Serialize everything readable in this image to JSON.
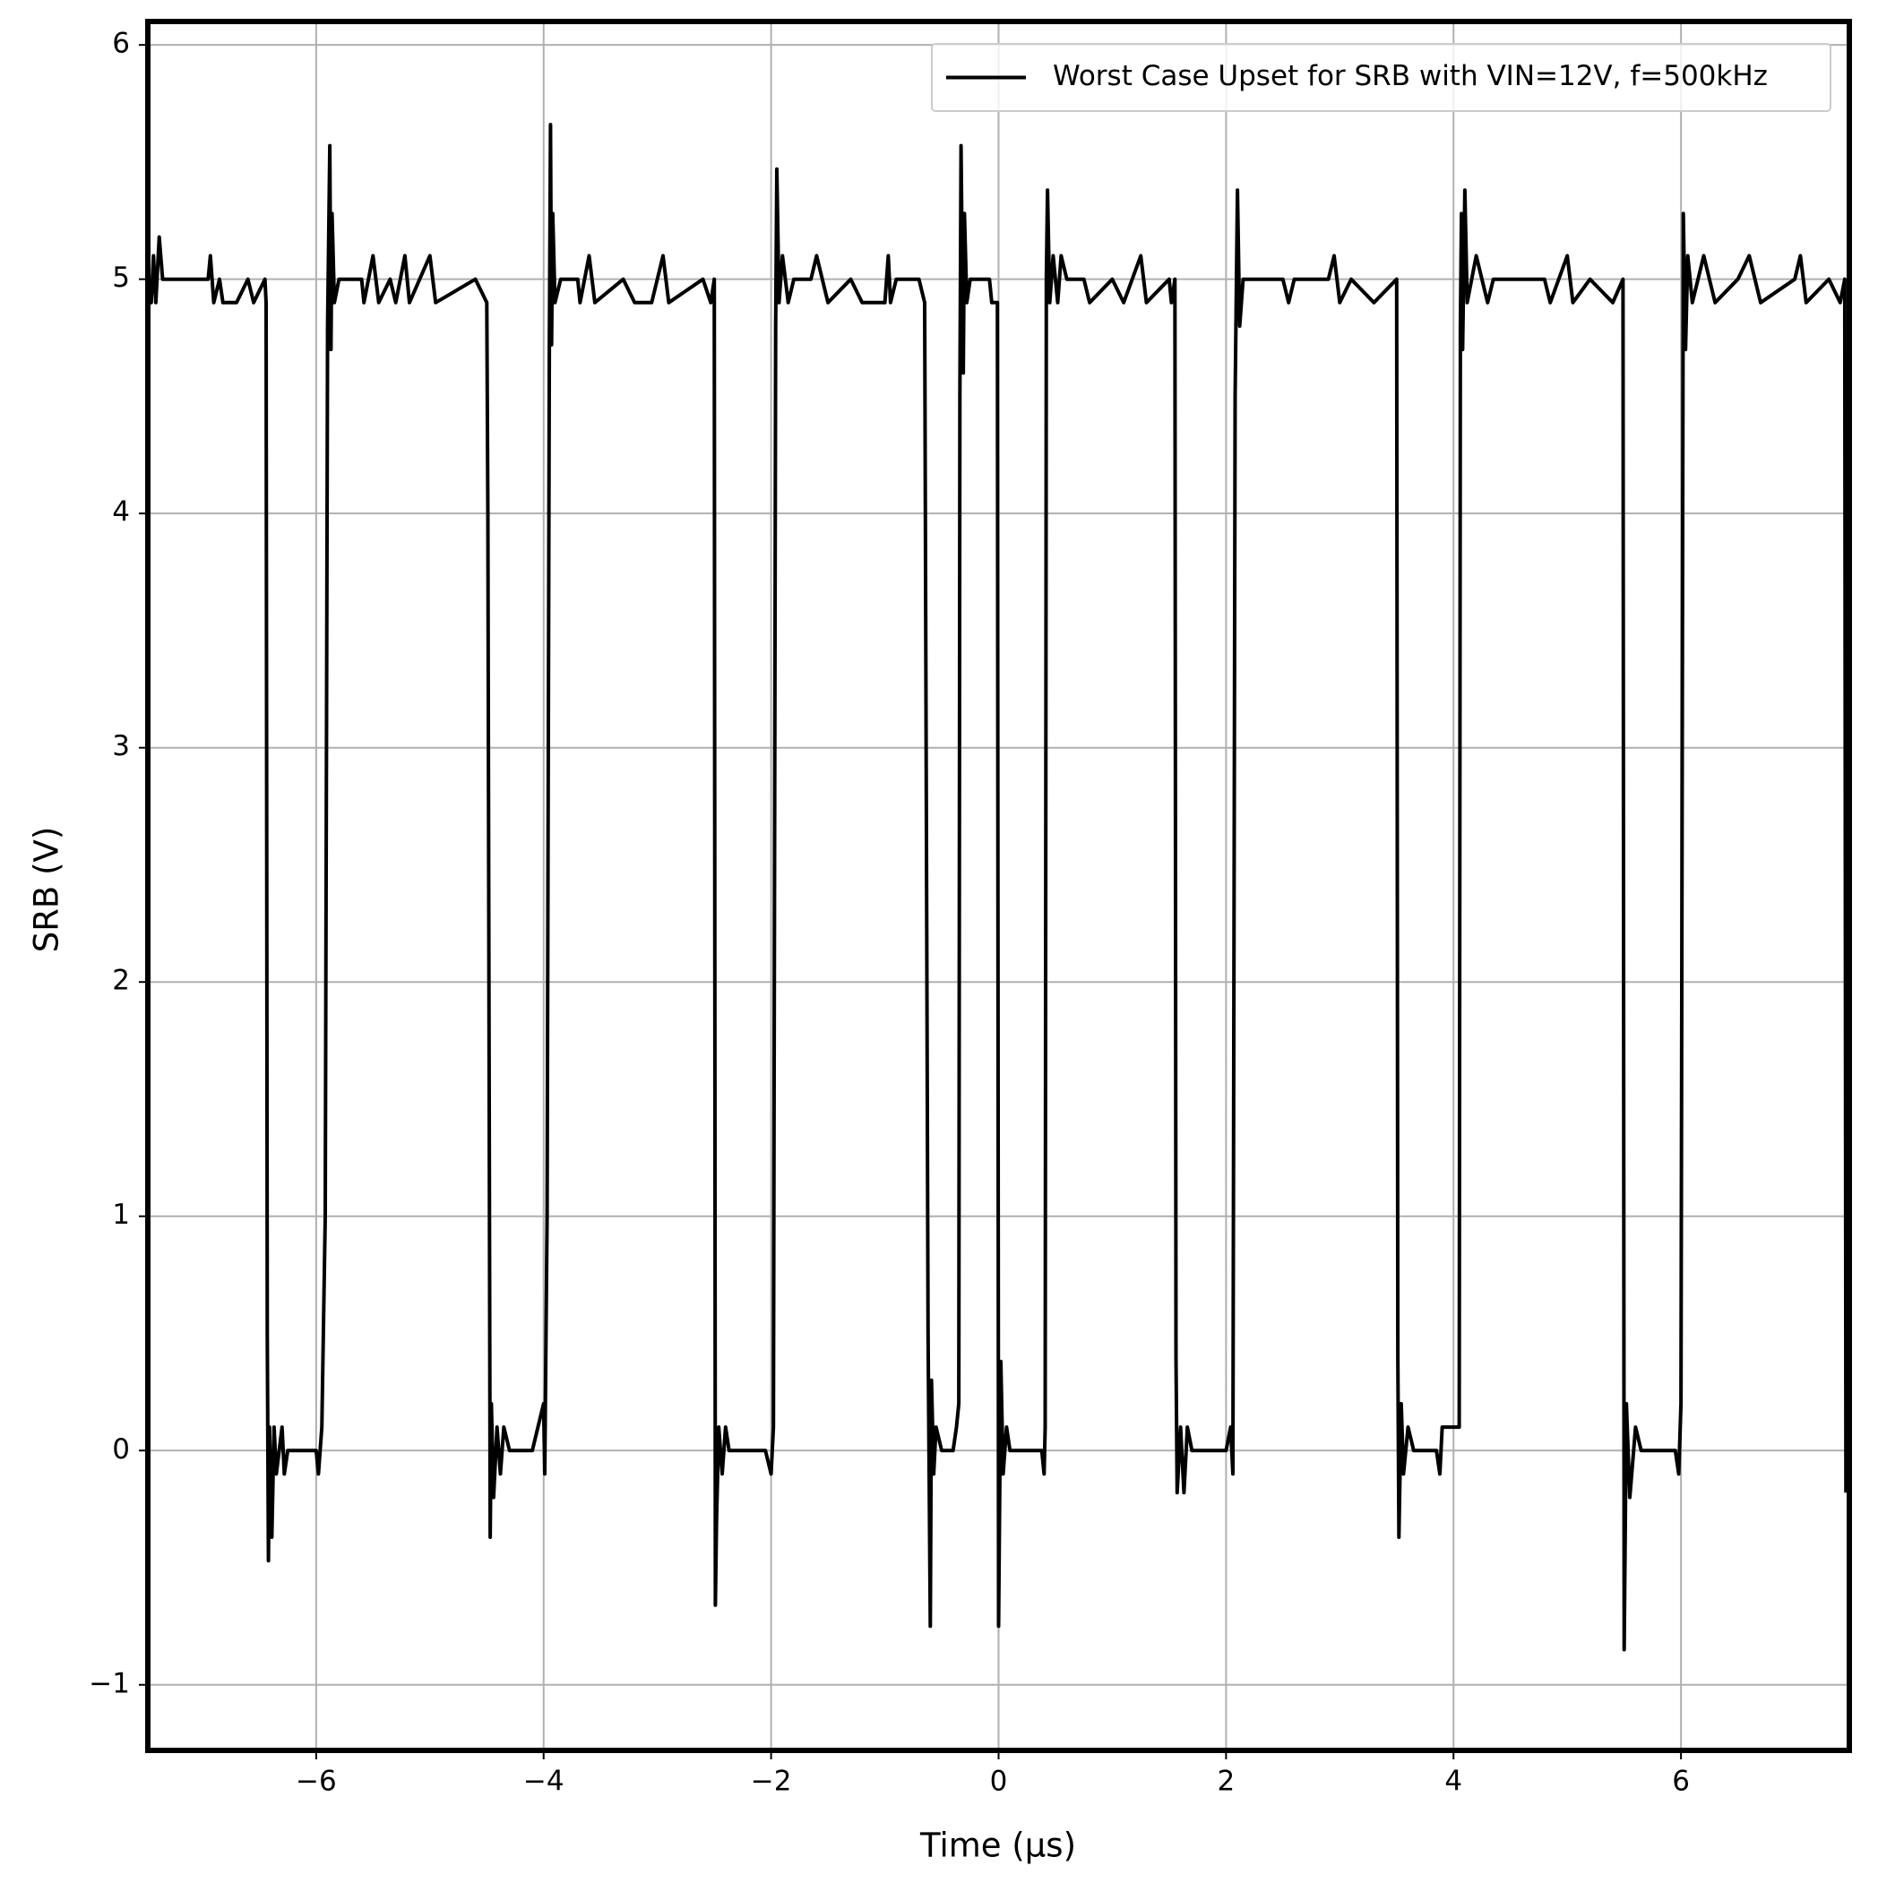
{
  "chart_data": {
    "type": "line",
    "x_label": "Time (μs)",
    "y_label": "SRB (V)",
    "xlim": [
      -7.48,
      7.48
    ],
    "ylim": [
      -1.28,
      6.1
    ],
    "xticks": [
      {
        "value": -6,
        "label": "−6"
      },
      {
        "value": -4,
        "label": "−4"
      },
      {
        "value": -2,
        "label": "−2"
      },
      0,
      2,
      4,
      6
    ],
    "yticks": [
      {
        "value": -1,
        "label": "−1"
      },
      0,
      1,
      2,
      3,
      4,
      5,
      6
    ],
    "grid": true,
    "legend": "upper right",
    "x": [
      -7.48,
      -7.45,
      -7.43,
      -7.41,
      -7.38,
      -7.35,
      -6.95,
      -6.93,
      -6.9,
      -6.85,
      -6.82,
      -6.7,
      -6.6,
      -6.55,
      -6.45,
      -6.44,
      -6.43,
      -6.42,
      -6.41,
      -6.39,
      -6.37,
      -6.35,
      -6.3,
      -6.28,
      -6.25,
      -6.0,
      -5.98,
      -5.95,
      -5.92,
      -5.9,
      -5.88,
      -5.87,
      -5.86,
      -5.84,
      -5.8,
      -5.6,
      -5.58,
      -5.5,
      -5.45,
      -5.35,
      -5.3,
      -5.22,
      -5.18,
      -5.0,
      -4.95,
      -4.6,
      -4.5,
      -4.49,
      -4.47,
      -4.46,
      -4.44,
      -4.41,
      -4.38,
      -4.35,
      -4.3,
      -4.1,
      -4.05,
      -4.0,
      -3.99,
      -3.97,
      -3.95,
      -3.94,
      -3.93,
      -3.92,
      -3.9,
      -3.85,
      -3.7,
      -3.68,
      -3.6,
      -3.55,
      -3.3,
      -3.2,
      -3.05,
      -2.95,
      -2.9,
      -2.6,
      -2.53,
      -2.5,
      -2.49,
      -2.48,
      -2.46,
      -2.43,
      -2.4,
      -2.37,
      -2.05,
      -2.0,
      -1.98,
      -1.96,
      -1.95,
      -1.93,
      -1.9,
      -1.85,
      -1.8,
      -1.65,
      -1.6,
      -1.5,
      -1.3,
      -1.2,
      -1.0,
      -0.97,
      -0.95,
      -0.9,
      -0.7,
      -0.65,
      -0.62,
      -0.6,
      -0.59,
      -0.57,
      -0.55,
      -0.5,
      -0.4,
      -0.37,
      -0.35,
      -0.34,
      -0.33,
      -0.31,
      -0.3,
      -0.28,
      -0.25,
      -0.12,
      -0.08,
      -0.06,
      -0.01,
      0,
      0.02,
      0.04,
      0.07,
      0.1,
      0.38,
      0.4,
      0.41,
      0.42,
      0.43,
      0.45,
      0.48,
      0.52,
      0.55,
      0.6,
      0.75,
      0.8,
      1.0,
      1.1,
      1.25,
      1.3,
      1.5,
      1.52,
      1.55,
      1.56,
      1.57,
      1.6,
      1.63,
      1.66,
      1.7,
      2.0,
      2.04,
      2.06,
      2.08,
      2.1,
      2.12,
      2.15,
      2.5,
      2.55,
      2.6,
      2.9,
      2.95,
      3.0,
      3.1,
      3.3,
      3.5,
      3.51,
      3.52,
      3.54,
      3.56,
      3.6,
      3.65,
      3.85,
      3.88,
      3.9,
      4.05,
      4.06,
      4.07,
      4.08,
      4.1,
      4.12,
      4.2,
      4.3,
      4.35,
      4.8,
      4.85,
      5.0,
      5.05,
      5.2,
      5.4,
      5.49,
      5.5,
      5.52,
      5.55,
      5.6,
      5.65,
      5.95,
      5.98,
      6.0,
      6.02,
      6.04,
      6.06,
      6.1,
      6.2,
      6.3,
      6.5,
      6.6,
      6.7,
      7.0,
      7.05,
      7.1,
      7.3,
      7.4,
      7.44,
      7.45
    ],
    "series": [
      {
        "name": "Worst Case Upset for SRB with VIN=12V, f=500kHz",
        "color": "#000000",
        "values": [
          5,
          4.9,
          5.1,
          4.9,
          5.18,
          5,
          5,
          5.1,
          4.9,
          5,
          4.9,
          4.9,
          5,
          4.9,
          5,
          4.9,
          0.5,
          -0.47,
          0.1,
          -0.37,
          0.1,
          -0.1,
          0.1,
          -0.1,
          0,
          0,
          -0.1,
          0.1,
          1,
          4.8,
          5.57,
          4.7,
          5.28,
          4.9,
          5,
          5,
          4.9,
          5.1,
          4.9,
          5,
          4.9,
          5.1,
          4.9,
          5.1,
          4.9,
          5,
          4.9,
          4,
          -0.37,
          0.2,
          -0.2,
          0.1,
          -0.1,
          0.1,
          0,
          0,
          0.1,
          0.2,
          -0.1,
          1,
          4.7,
          5.66,
          4.72,
          5.28,
          4.9,
          5,
          5,
          4.9,
          5.1,
          4.9,
          5,
          4.9,
          4.9,
          5.1,
          4.9,
          5,
          4.9,
          5,
          -0.66,
          -0.3,
          0.1,
          -0.1,
          0.1,
          0,
          0,
          -0.1,
          0.1,
          4.8,
          5.47,
          4.9,
          5.1,
          4.9,
          5,
          5,
          5.1,
          4.9,
          5,
          4.9,
          4.9,
          5.1,
          4.9,
          5,
          5,
          4.9,
          0.5,
          -0.75,
          0.3,
          -0.1,
          0.1,
          0,
          0,
          0.1,
          0.2,
          4.5,
          5.57,
          4.6,
          5.28,
          4.9,
          5,
          5,
          5,
          4.9,
          4.9,
          -0.75,
          0.38,
          -0.1,
          0.1,
          0,
          0,
          -0.1,
          0.1,
          5,
          5.38,
          4.9,
          5.1,
          4.9,
          5.1,
          5,
          5,
          4.9,
          5,
          4.9,
          5.1,
          4.9,
          5,
          4.9,
          5,
          0.4,
          -0.18,
          0.1,
          -0.18,
          0.1,
          0,
          0,
          0.1,
          -0.1,
          4.5,
          5.38,
          4.8,
          5,
          5,
          4.9,
          5,
          5,
          5.1,
          4.9,
          5,
          4.9,
          5,
          0.4,
          -0.37,
          0.2,
          -0.1,
          0.1,
          0,
          0,
          -0.1,
          0.1,
          0.1,
          4.8,
          5.28,
          4.7,
          5.38,
          4.9,
          5.1,
          4.9,
          5,
          5,
          4.9,
          5.1,
          4.9,
          5,
          4.9,
          5,
          -0.85,
          0.2,
          -0.2,
          0.1,
          0,
          0,
          -0.1,
          0.2,
          5.28,
          4.7,
          5.1,
          4.9,
          5.1,
          4.9,
          5,
          5.1,
          4.9,
          5,
          5.1,
          4.9,
          5,
          4.9,
          5,
          -0.18
        ]
      }
    ]
  }
}
